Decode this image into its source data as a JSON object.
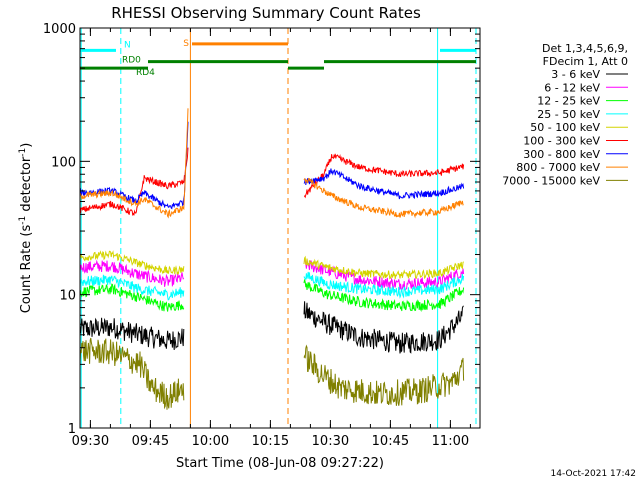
{
  "chart_data": {
    "type": "line",
    "title": "RHESSI Observing Summary Count Rates",
    "xlabel": "Start Time (08-Jun-08 09:27:22)",
    "ylabel_parts": [
      "Count Rate (s",
      "-1",
      " detector",
      "-1",
      ")"
    ],
    "yscale": "log",
    "ylim": [
      1,
      1000
    ],
    "xlim_minutes": [
      0,
      100
    ],
    "x_ticks": [
      {
        "label": "09:30",
        "minute": 2.6
      },
      {
        "label": "09:45",
        "minute": 17.6
      },
      {
        "label": "10:00",
        "minute": 32.6
      },
      {
        "label": "10:15",
        "minute": 47.6
      },
      {
        "label": "10:30",
        "minute": 62.6
      },
      {
        "label": "10:45",
        "minute": 77.6
      },
      {
        "label": "11:00",
        "minute": 92.6
      }
    ],
    "y_ticks": [
      {
        "label": "1",
        "value": 1
      },
      {
        "label": "10",
        "value": 10
      },
      {
        "label": "100",
        "value": 100
      },
      {
        "label": "1000",
        "value": 1000
      }
    ],
    "legend_title": [
      "Det 1,3,4,5,6,9,",
      "FDecim 1, Att 0"
    ],
    "legend_placement": "right",
    "gap_minutes": [
      27.3,
      55.0
    ],
    "series": [
      {
        "name": "3 - 6 keV",
        "color": "#000000",
        "noise": 0.08,
        "segments": [
          [
            [
              0,
              5.5
            ],
            [
              8,
              5.7
            ],
            [
              15,
              5.0
            ],
            [
              22,
              4.5
            ],
            [
              26,
              4.8
            ]
          ],
          [
            [
              56,
              7.5
            ],
            [
              62,
              6.0
            ],
            [
              70,
              4.8
            ],
            [
              80,
              4.3
            ],
            [
              90,
              4.6
            ],
            [
              96,
              7.0
            ]
          ]
        ]
      },
      {
        "name": "6 - 12 keV",
        "color": "#ff00ff",
        "noise": 0.045,
        "segments": [
          [
            [
              0,
              16
            ],
            [
              8,
              16.5
            ],
            [
              15,
              14
            ],
            [
              22,
              12.5
            ],
            [
              26,
              13.5
            ]
          ],
          [
            [
              56,
              17
            ],
            [
              62,
              15
            ],
            [
              70,
              13
            ],
            [
              80,
              12
            ],
            [
              90,
              12.5
            ],
            [
              96,
              15
            ]
          ]
        ]
      },
      {
        "name": "12 - 25 keV",
        "color": "#00ff00",
        "noise": 0.04,
        "segments": [
          [
            [
              0,
              10.5
            ],
            [
              8,
              11
            ],
            [
              15,
              9.5
            ],
            [
              22,
              8
            ],
            [
              26,
              8.5
            ]
          ],
          [
            [
              56,
              12
            ],
            [
              62,
              10
            ],
            [
              70,
              8.8
            ],
            [
              80,
              8.2
            ],
            [
              90,
              8.5
            ],
            [
              96,
              11
            ]
          ]
        ]
      },
      {
        "name": "25 - 50 keV",
        "color": "#00ffff",
        "noise": 0.04,
        "segments": [
          [
            [
              0,
              12.5
            ],
            [
              8,
              13
            ],
            [
              15,
              11
            ],
            [
              22,
              10
            ],
            [
              26,
              10.5
            ]
          ],
          [
            [
              56,
              14
            ],
            [
              62,
              12
            ],
            [
              70,
              11
            ],
            [
              80,
              10.5
            ],
            [
              90,
              11
            ],
            [
              96,
              13.5
            ]
          ]
        ]
      },
      {
        "name": "50 - 100 keV",
        "color": "#d4d400",
        "noise": 0.03,
        "segments": [
          [
            [
              0,
              19
            ],
            [
              8,
              20
            ],
            [
              15,
              17
            ],
            [
              22,
              15
            ],
            [
              26,
              15.5
            ]
          ],
          [
            [
              56,
              18
            ],
            [
              62,
              16
            ],
            [
              70,
              14.5
            ],
            [
              80,
              14
            ],
            [
              90,
              14.5
            ],
            [
              96,
              17
            ]
          ]
        ]
      },
      {
        "name": "100 - 300 keV",
        "color": "#ff0000",
        "noise": 0.025,
        "segments": [
          [
            [
              0,
              43
            ],
            [
              8,
              48
            ],
            [
              14,
              40
            ],
            [
              16,
              75
            ],
            [
              22,
              65
            ],
            [
              26,
              70
            ],
            [
              27,
              120
            ]
          ],
          [
            [
              56,
              55
            ],
            [
              61,
              80
            ],
            [
              63,
              110
            ],
            [
              70,
              90
            ],
            [
              80,
              80
            ],
            [
              90,
              82
            ],
            [
              96,
              92
            ]
          ]
        ]
      },
      {
        "name": "300 - 800 keV",
        "color": "#0000ff",
        "noise": 0.025,
        "segments": [
          [
            [
              0,
              58
            ],
            [
              8,
              60
            ],
            [
              14,
              50
            ],
            [
              16,
              58
            ],
            [
              22,
              45
            ],
            [
              26,
              50
            ],
            [
              27,
              200
            ]
          ],
          [
            [
              56,
              70
            ],
            [
              61,
              75
            ],
            [
              63,
              85
            ],
            [
              70,
              65
            ],
            [
              80,
              55
            ],
            [
              90,
              58
            ],
            [
              96,
              65
            ]
          ]
        ]
      },
      {
        "name": "800 - 7000 keV",
        "color": "#ff8000",
        "noise": 0.025,
        "segments": [
          [
            [
              0,
              55
            ],
            [
              8,
              58
            ],
            [
              14,
              48
            ],
            [
              16,
              52
            ],
            [
              22,
              40
            ],
            [
              26,
              45
            ],
            [
              27,
              240
            ]
          ],
          [
            [
              56,
              75
            ],
            [
              61,
              60
            ],
            [
              63,
              55
            ],
            [
              70,
              45
            ],
            [
              80,
              40
            ],
            [
              90,
              42
            ],
            [
              96,
              50
            ]
          ]
        ]
      },
      {
        "name": "7000 - 15000 keV",
        "color": "#808000",
        "noise": 0.1,
        "segments": [
          [
            [
              0,
              3.8
            ],
            [
              8,
              3.7
            ],
            [
              15,
              3.0
            ],
            [
              18,
              2.0
            ],
            [
              22,
              1.7
            ],
            [
              26,
              2.0
            ]
          ],
          [
            [
              56,
              3.5
            ],
            [
              60,
              2.6
            ],
            [
              65,
              2.0
            ],
            [
              75,
              1.8
            ],
            [
              85,
              1.9
            ],
            [
              93,
              2.2
            ],
            [
              96,
              2.8
            ]
          ]
        ]
      }
    ],
    "flag_bars": [
      {
        "name": "N",
        "color": "#00ffff",
        "y_value": 680,
        "spans": [
          [
            0,
            9
          ],
          [
            90,
            99
          ]
        ]
      },
      {
        "name": "S",
        "color": "#ff8000",
        "y_value": 760,
        "spans": [
          [
            28,
            52
          ]
        ]
      },
      {
        "name": "RD0",
        "color": "#008000",
        "y_value": 560,
        "spans": [
          [
            17,
            52
          ],
          [
            61,
            99
          ]
        ]
      },
      {
        "name": "RD4",
        "color": "#008000",
        "y_value": 500,
        "spans": [
          [
            0,
            17
          ],
          [
            52,
            61
          ]
        ]
      }
    ],
    "vlines": [
      {
        "minute": 0.3,
        "color": "#00ffff",
        "dash": false
      },
      {
        "minute": 10.2,
        "color": "#00ffff",
        "dash": true
      },
      {
        "minute": 27.6,
        "color": "#ff8000",
        "dash": false
      },
      {
        "minute": 52.0,
        "color": "#ff8000",
        "dash": true
      },
      {
        "minute": 89.4,
        "color": "#00ffff",
        "dash": false
      },
      {
        "minute": 99.0,
        "color": "#00ffff",
        "dash": true
      }
    ]
  },
  "footer": {
    "timestamp": "14-Oct-2021 17:42"
  }
}
